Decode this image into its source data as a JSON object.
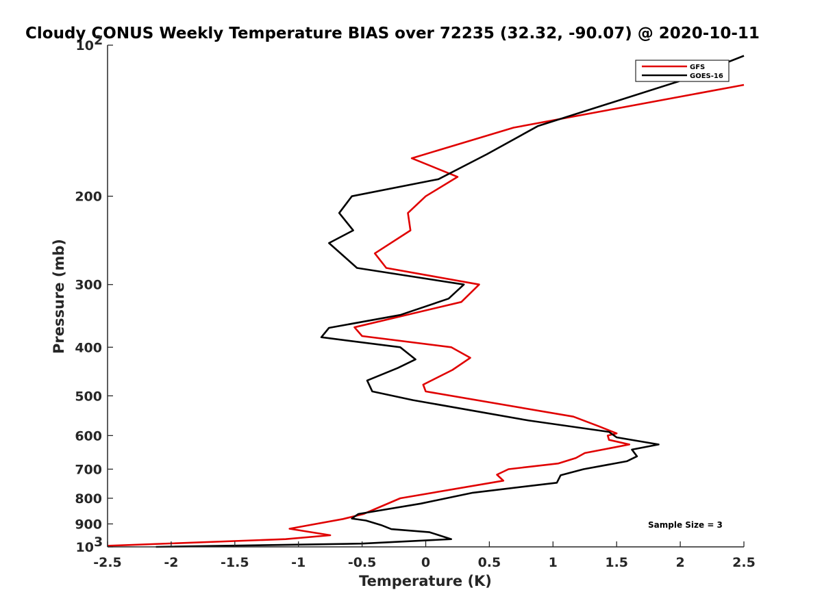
{
  "chart_data": {
    "type": "line",
    "title": "Cloudy CONUS Weekly Temperature BIAS over 72235 (32.32, -90.07) @ 2020-10-11",
    "xlabel": "Temperature (K)",
    "ylabel": "Pressure (mb)",
    "xlim": [
      -2.5,
      2.5
    ],
    "ylim": [
      100,
      1000
    ],
    "y_scale": "log",
    "y_reversed": true,
    "grid": false,
    "legend_position": "top-right",
    "x_ticks": [
      "-2.5",
      "-2",
      "-1.5",
      "-1",
      "-0.5",
      "0",
      "0.5",
      "1",
      "1.5",
      "2",
      "2.5"
    ],
    "y_ticks": [
      {
        "value": 100,
        "label": "10",
        "sup": "2"
      },
      {
        "value": 200,
        "label": "200"
      },
      {
        "value": 300,
        "label": "300"
      },
      {
        "value": 400,
        "label": "400"
      },
      {
        "value": 500,
        "label": "500"
      },
      {
        "value": 600,
        "label": "600"
      },
      {
        "value": 700,
        "label": "700"
      },
      {
        "value": 800,
        "label": "800"
      },
      {
        "value": 900,
        "label": "900"
      },
      {
        "value": 1000,
        "label": "10",
        "sup": "3"
      }
    ],
    "annotation": "Sample Size = 3",
    "series": [
      {
        "name": "GFS",
        "color": "#e00000",
        "points": [
          {
            "x": 2.5,
            "y": 120
          },
          {
            "x": 0.69,
            "y": 146
          },
          {
            "x": -0.11,
            "y": 168
          },
          {
            "x": 0.25,
            "y": 183
          },
          {
            "x": 0.0,
            "y": 200
          },
          {
            "x": -0.14,
            "y": 216
          },
          {
            "x": -0.12,
            "y": 234
          },
          {
            "x": -0.4,
            "y": 260
          },
          {
            "x": -0.31,
            "y": 278
          },
          {
            "x": 0.42,
            "y": 300
          },
          {
            "x": 0.28,
            "y": 325
          },
          {
            "x": -0.56,
            "y": 365
          },
          {
            "x": -0.5,
            "y": 380
          },
          {
            "x": 0.2,
            "y": 400
          },
          {
            "x": 0.35,
            "y": 420
          },
          {
            "x": 0.21,
            "y": 444
          },
          {
            "x": -0.02,
            "y": 475
          },
          {
            "x": 0.0,
            "y": 490
          },
          {
            "x": 1.16,
            "y": 550
          },
          {
            "x": 1.36,
            "y": 575
          },
          {
            "x": 1.5,
            "y": 594
          },
          {
            "x": 1.43,
            "y": 600
          },
          {
            "x": 1.44,
            "y": 612
          },
          {
            "x": 1.6,
            "y": 625
          },
          {
            "x": 1.25,
            "y": 650
          },
          {
            "x": 1.18,
            "y": 665
          },
          {
            "x": 1.04,
            "y": 682
          },
          {
            "x": 0.65,
            "y": 700
          },
          {
            "x": 0.56,
            "y": 718
          },
          {
            "x": 0.61,
            "y": 738
          },
          {
            "x": -0.2,
            "y": 800
          },
          {
            "x": -0.49,
            "y": 860
          },
          {
            "x": -0.65,
            "y": 880
          },
          {
            "x": -1.07,
            "y": 920
          },
          {
            "x": -0.75,
            "y": 948
          },
          {
            "x": -1.1,
            "y": 965
          },
          {
            "x": -2.5,
            "y": 995
          }
        ]
      },
      {
        "name": "GOES-16",
        "color": "#000000",
        "points": [
          {
            "x": 2.5,
            "y": 105
          },
          {
            "x": 1.99,
            "y": 118
          },
          {
            "x": 0.88,
            "y": 145
          },
          {
            "x": 0.48,
            "y": 165
          },
          {
            "x": 0.1,
            "y": 185
          },
          {
            "x": -0.58,
            "y": 200
          },
          {
            "x": -0.68,
            "y": 216
          },
          {
            "x": -0.57,
            "y": 234
          },
          {
            "x": -0.76,
            "y": 248
          },
          {
            "x": -0.54,
            "y": 278
          },
          {
            "x": 0.3,
            "y": 300
          },
          {
            "x": 0.18,
            "y": 320
          },
          {
            "x": -0.2,
            "y": 345
          },
          {
            "x": -0.76,
            "y": 366
          },
          {
            "x": -0.82,
            "y": 382
          },
          {
            "x": -0.2,
            "y": 400
          },
          {
            "x": -0.08,
            "y": 423
          },
          {
            "x": -0.22,
            "y": 440
          },
          {
            "x": -0.46,
            "y": 466
          },
          {
            "x": -0.42,
            "y": 490
          },
          {
            "x": -0.1,
            "y": 510
          },
          {
            "x": 0.81,
            "y": 560
          },
          {
            "x": 1.44,
            "y": 590
          },
          {
            "x": 1.5,
            "y": 605
          },
          {
            "x": 1.83,
            "y": 625
          },
          {
            "x": 1.62,
            "y": 640
          },
          {
            "x": 1.66,
            "y": 660
          },
          {
            "x": 1.58,
            "y": 675
          },
          {
            "x": 1.24,
            "y": 700
          },
          {
            "x": 1.06,
            "y": 720
          },
          {
            "x": 1.03,
            "y": 745
          },
          {
            "x": 0.37,
            "y": 780
          },
          {
            "x": -0.04,
            "y": 820
          },
          {
            "x": -0.53,
            "y": 860
          },
          {
            "x": -0.58,
            "y": 878
          },
          {
            "x": -0.47,
            "y": 886
          },
          {
            "x": -0.35,
            "y": 905
          },
          {
            "x": -0.27,
            "y": 922
          },
          {
            "x": 0.03,
            "y": 935
          },
          {
            "x": 0.2,
            "y": 965
          },
          {
            "x": -0.5,
            "y": 985
          },
          {
            "x": -2.12,
            "y": 1000
          }
        ]
      }
    ]
  }
}
